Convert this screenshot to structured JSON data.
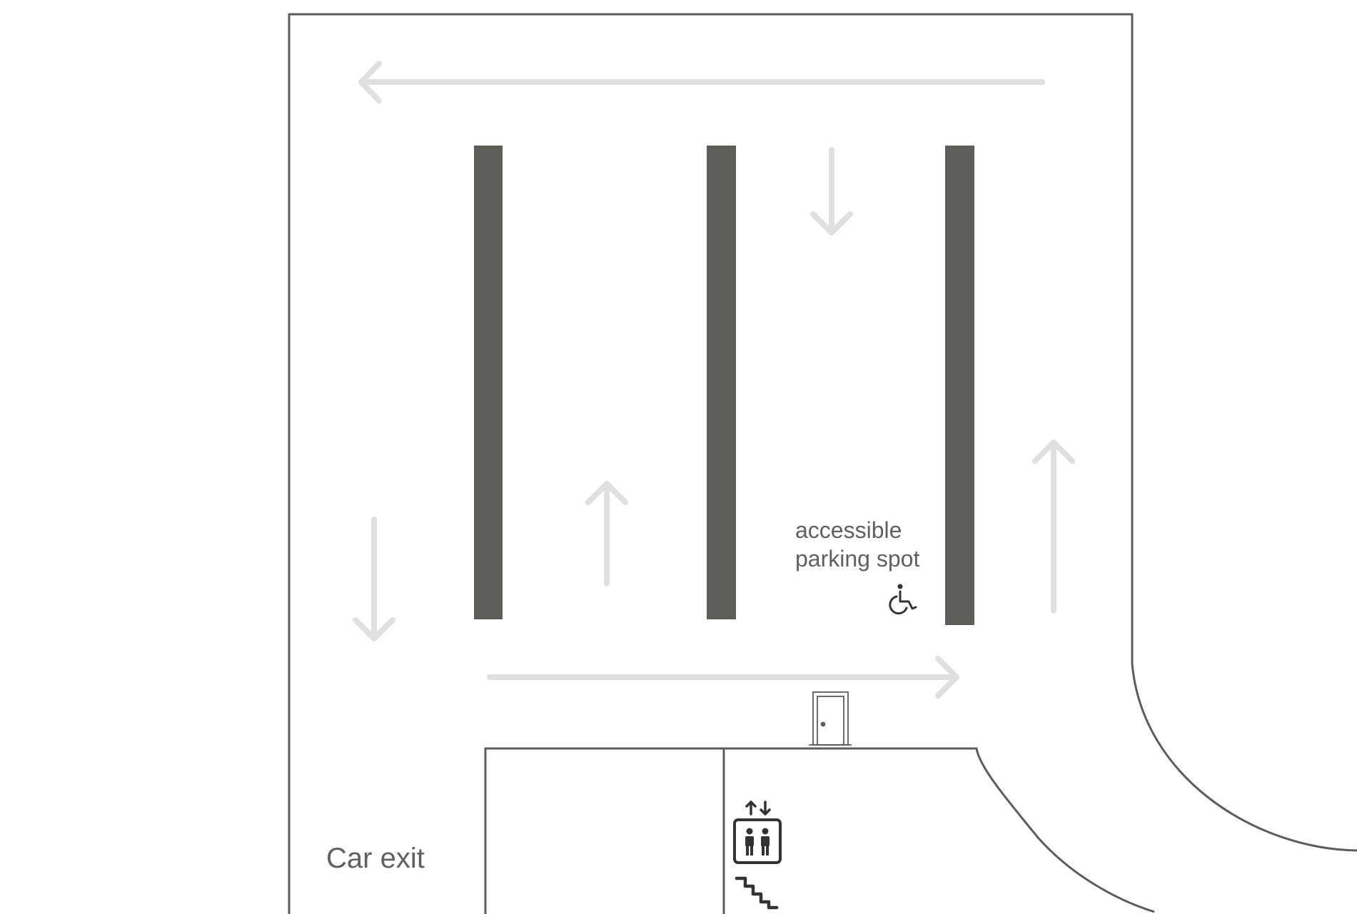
{
  "map": {
    "labels": {
      "accessible_line1": "accessible",
      "accessible_line2": "parking spot",
      "car_exit": "Car exit"
    },
    "icons": {
      "accessible": "wheelchair-icon",
      "door": "door-icon",
      "elevator": "elevator-icon",
      "stairs": "stairs-icon"
    },
    "colors": {
      "walls": "#5c5c58",
      "pillars": "#5f5e59",
      "arrows": "#e0e0e0",
      "text": "#606060",
      "icons": "#333333"
    }
  }
}
